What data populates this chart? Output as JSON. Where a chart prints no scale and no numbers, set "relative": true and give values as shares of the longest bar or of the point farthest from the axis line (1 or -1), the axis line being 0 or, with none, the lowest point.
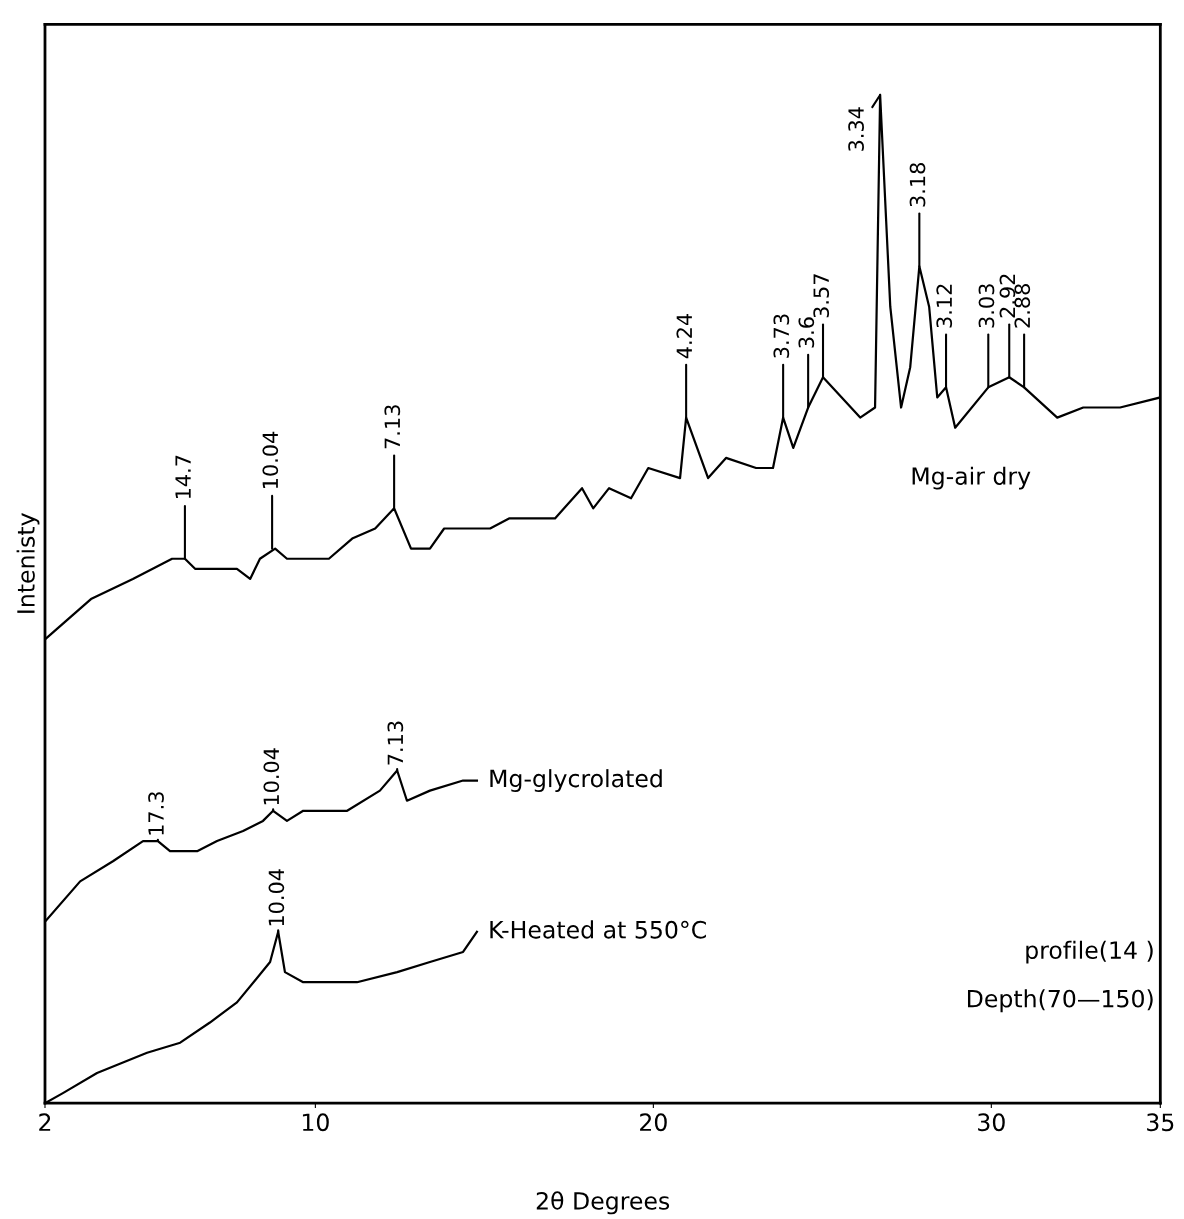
{
  "chart_data": {
    "type": "line",
    "relative": true,
    "xlabel": "2θ Degrees",
    "ylabel": "Intenisty",
    "xlim": [
      2,
      35
    ],
    "xticks": [
      2,
      10,
      20,
      30,
      35
    ],
    "grid": false,
    "legend": false,
    "marker": "none",
    "line_style": "solid",
    "series": [
      {
        "name": "Mg-air dry",
        "color": "#000000",
        "x": [
          2.0,
          3.36,
          4.6,
          5.76,
          6.14,
          6.44,
          7.68,
          8.07,
          8.36,
          8.81,
          9.16,
          10.4,
          11.09,
          11.77,
          12.33,
          12.83,
          13.39,
          13.81,
          15.17,
          15.73,
          17.09,
          17.89,
          18.22,
          18.69,
          19.34,
          19.85,
          20.79,
          20.97,
          21.62,
          22.15,
          23.04,
          23.54,
          23.84,
          24.14,
          24.58,
          25.02,
          26.12,
          26.56,
          26.71,
          27.01,
          27.33,
          27.6,
          27.87,
          28.16,
          28.4,
          28.66,
          28.93,
          29.91,
          30.53,
          30.97,
          31.95,
          32.72,
          33.81,
          35.0
        ],
        "values": [
          0.46,
          0.5,
          0.52,
          0.54,
          0.54,
          0.53,
          0.53,
          0.52,
          0.54,
          0.55,
          0.54,
          0.54,
          0.56,
          0.57,
          0.59,
          0.55,
          0.55,
          0.57,
          0.57,
          0.58,
          0.58,
          0.61,
          0.59,
          0.61,
          0.6,
          0.63,
          0.62,
          0.68,
          0.62,
          0.64,
          0.63,
          0.63,
          0.68,
          0.65,
          0.69,
          0.72,
          0.68,
          0.69,
          1.0,
          0.79,
          0.69,
          0.73,
          0.83,
          0.79,
          0.7,
          0.71,
          0.67,
          0.71,
          0.72,
          0.71,
          0.68,
          0.69,
          0.69,
          0.7
        ]
      },
      {
        "name": "Mg-glycrolated",
        "color": "#000000",
        "x": [
          2.0,
          3.04,
          4.01,
          4.9,
          5.34,
          5.7,
          6.5,
          7.09,
          7.86,
          8.45,
          8.75,
          9.16,
          9.64,
          10.94,
          11.91,
          12.42,
          12.71,
          13.39,
          14.37,
          14.78
        ],
        "values": [
          0.18,
          0.22,
          0.24,
          0.26,
          0.26,
          0.25,
          0.25,
          0.26,
          0.27,
          0.28,
          0.29,
          0.28,
          0.29,
          0.29,
          0.31,
          0.33,
          0.3,
          0.31,
          0.32,
          0.32
        ]
      },
      {
        "name": "K-Heated at 550°C",
        "color": "#000000",
        "x": [
          2.0,
          2.53,
          3.54,
          5.02,
          6.0,
          6.88,
          7.68,
          8.66,
          8.9,
          9.1,
          9.64,
          10.14,
          11.23,
          12.42,
          13.39,
          14.37,
          14.78
        ],
        "values": [
          0.0,
          0.01,
          0.03,
          0.05,
          0.06,
          0.08,
          0.1,
          0.14,
          0.17,
          0.13,
          0.12,
          0.12,
          0.12,
          0.13,
          0.14,
          0.15,
          0.17
        ]
      }
    ],
    "annotations": [
      {
        "text": "14.7",
        "x": 6.14,
        "y": 0.54
      },
      {
        "text": "10.04",
        "x": 8.72,
        "y": 0.55
      },
      {
        "text": "7.13",
        "x": 12.33,
        "y": 0.59
      },
      {
        "text": "4.24",
        "x": 20.97,
        "y": 0.68
      },
      {
        "text": "3.73",
        "x": 23.84,
        "y": 0.68
      },
      {
        "text": "3.6",
        "x": 24.58,
        "y": 0.69
      },
      {
        "text": "3.57",
        "x": 25.02,
        "y": 0.72
      },
      {
        "text": "3.34",
        "x": 26.71,
        "y": 1.0
      },
      {
        "text": "3.18",
        "x": 27.87,
        "y": 0.83
      },
      {
        "text": "3.12",
        "x": 28.66,
        "y": 0.71
      },
      {
        "text": "3.03",
        "x": 29.91,
        "y": 0.71
      },
      {
        "text": "2.92",
        "x": 30.53,
        "y": 0.72
      },
      {
        "text": "2.88",
        "x": 30.97,
        "y": 0.71
      },
      {
        "text": "17.3",
        "x": 5.34,
        "y": 0.26
      },
      {
        "text": "10.04",
        "x": 8.75,
        "y": 0.29
      },
      {
        "text": "7.13",
        "x": 12.42,
        "y": 0.33
      },
      {
        "text": "10.04",
        "x": 8.9,
        "y": 0.17
      },
      "profile(14 )",
      "Depth(70—150)"
    ]
  }
}
